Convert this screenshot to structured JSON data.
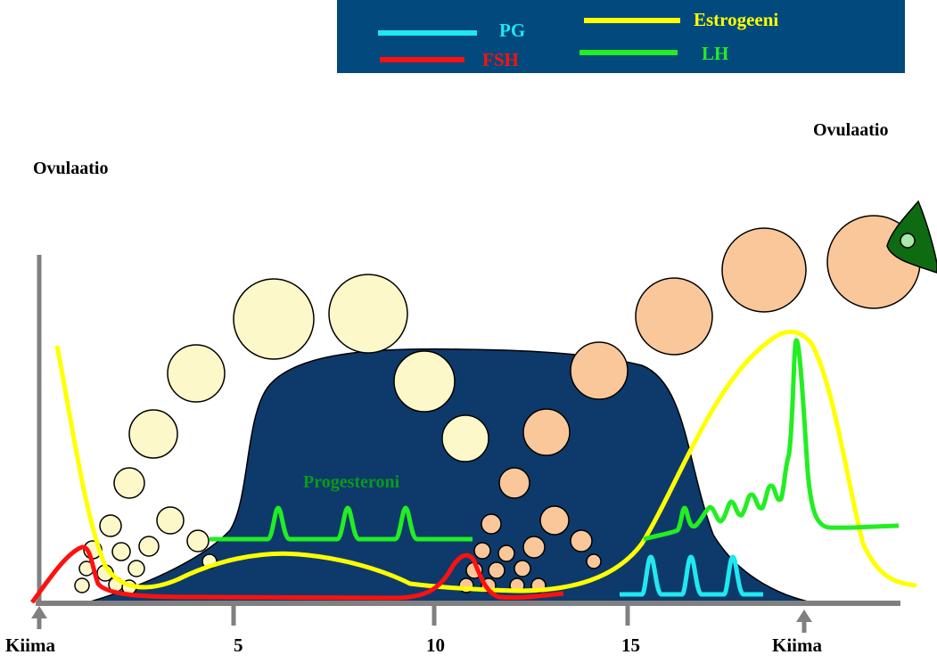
{
  "legend": {
    "pg": "PG",
    "fsh": "FSH",
    "estrogen": "Estrogeeni",
    "lh": "LH"
  },
  "labels": {
    "ovulation_left": "Ovulaatio",
    "ovulation_right": "Ovulaatio",
    "progesterone": "Progesteroni"
  },
  "axis": {
    "ticks": [
      "Kiima",
      "5",
      "10",
      "15",
      "Kiima"
    ]
  },
  "colors": {
    "pg": "#1fe8f0",
    "fsh": "#ff1010",
    "estrogen": "#ffff00",
    "lh": "#22ee22",
    "corpus_luteum": "#0d3a6b",
    "legend_bg": "#02497d",
    "follicle_first": "#fdf8c9",
    "follicle_second": "#f9c79a",
    "progesterone_label": "#0a9a1a",
    "ovulation_marker": "#0e6b12",
    "axis": "#808080"
  }
}
